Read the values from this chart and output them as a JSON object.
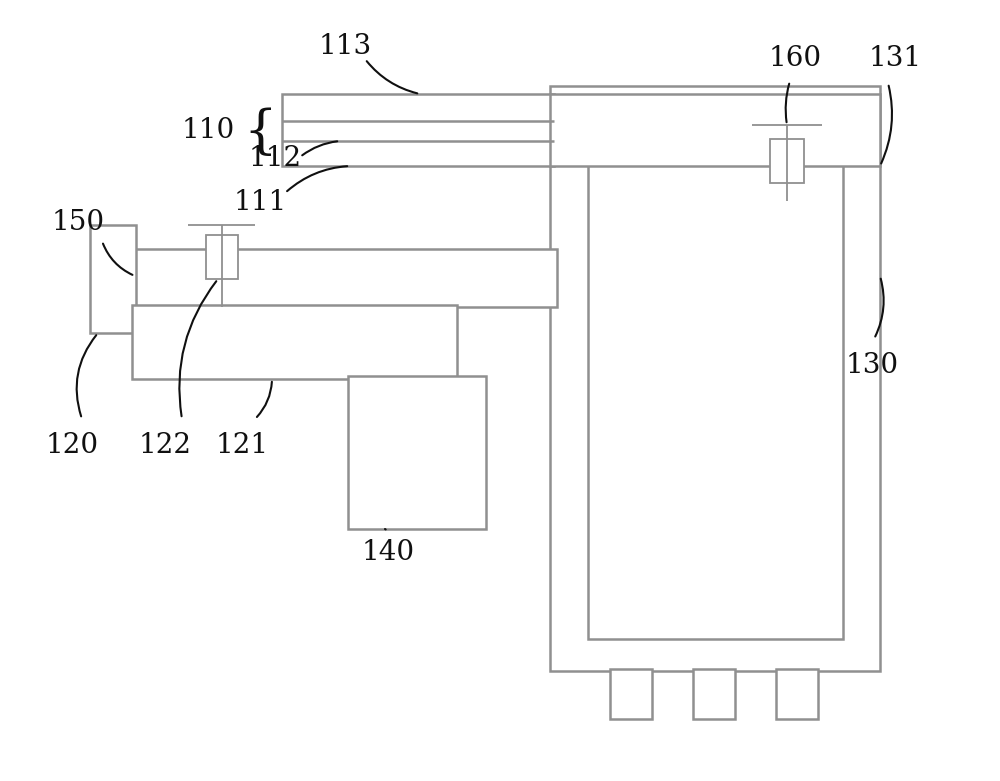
{
  "bg_color": "#ffffff",
  "gray": "#909090",
  "black": "#101010",
  "fig_width": 10.0,
  "fig_height": 7.81,
  "lw_main": 1.8,
  "lw_thin": 1.3,
  "fs": 20
}
